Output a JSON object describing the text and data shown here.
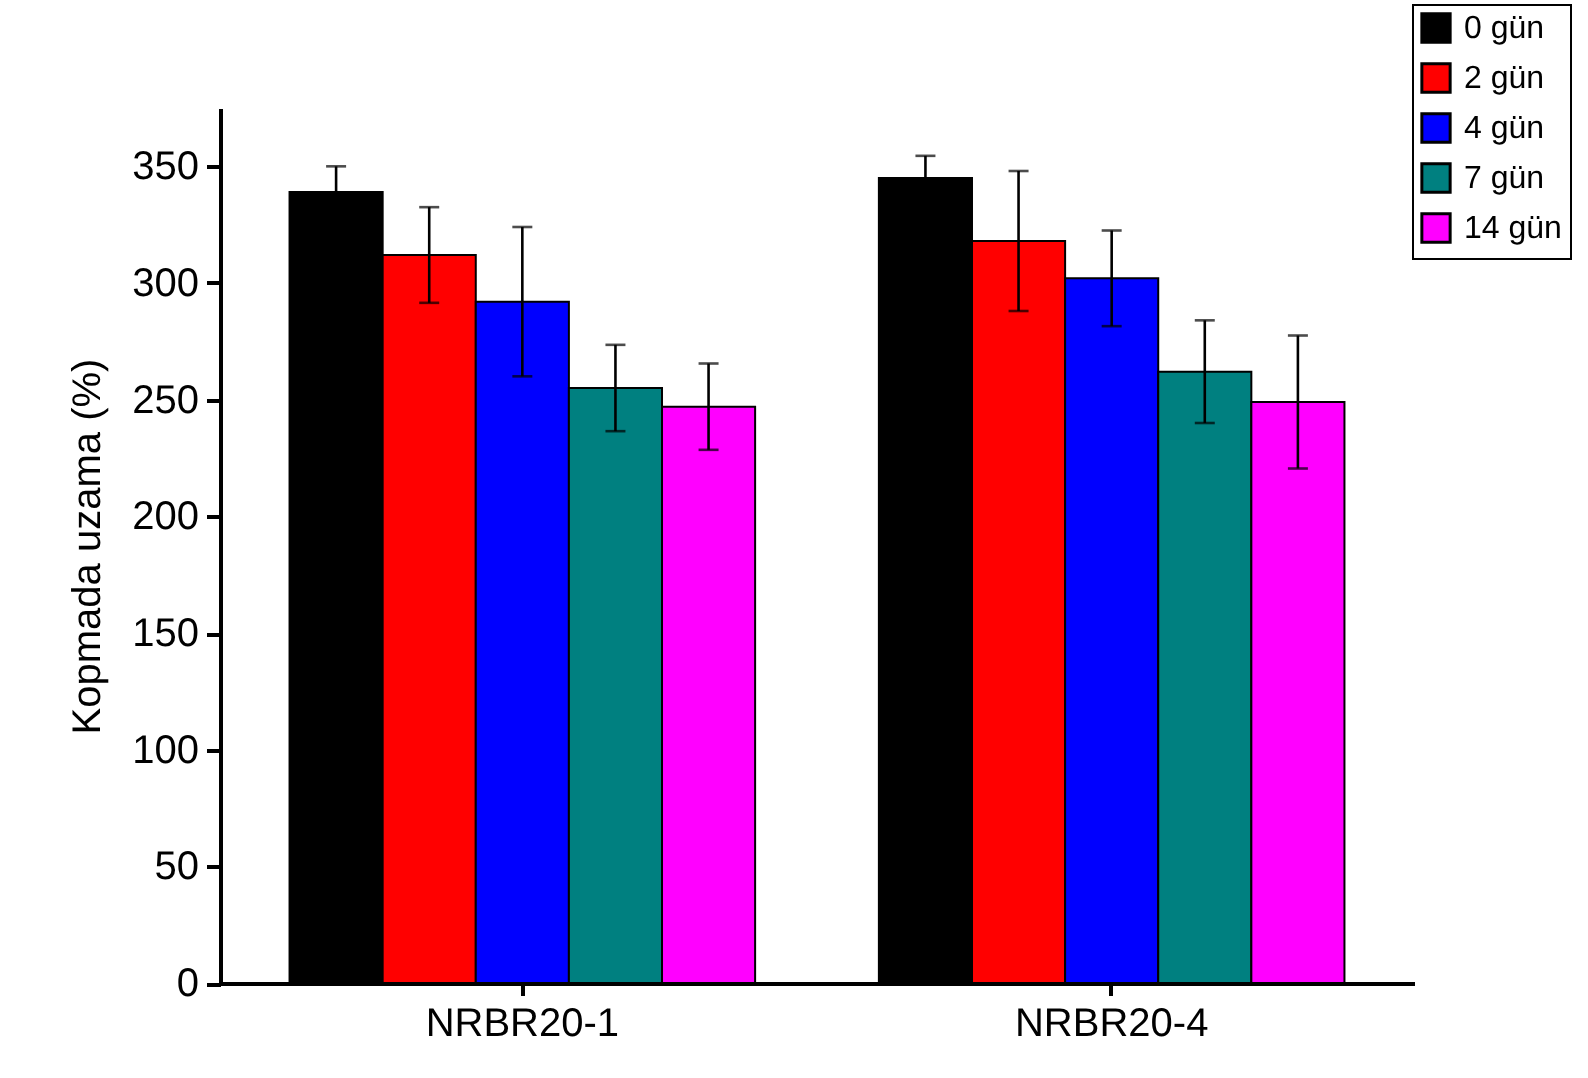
{
  "chart_data": {
    "type": "bar",
    "ylabel": "Kopmada uzama (%)",
    "categories": [
      "NRBR20-1",
      "NRBR20-4"
    ],
    "series": [
      {
        "name": "0 gün",
        "color": "#000000",
        "values": [
          339,
          345
        ],
        "errors": [
          11,
          9.5
        ]
      },
      {
        "name": "2 gün",
        "color": "#ff0000",
        "values": [
          312,
          318
        ],
        "errors": [
          20.5,
          30
        ]
      },
      {
        "name": "4 gün",
        "color": "#0000ff",
        "values": [
          292,
          302
        ],
        "errors": [
          32,
          20.5
        ]
      },
      {
        "name": "7 gün",
        "color": "#008080",
        "values": [
          255,
          262
        ],
        "errors": [
          18.5,
          22
        ]
      },
      {
        "name": "14 gün",
        "color": "#ff00ff",
        "values": [
          247,
          249
        ],
        "errors": [
          18.5,
          28.5
        ]
      }
    ],
    "ylim": [
      0,
      375
    ],
    "yticks": [
      0,
      50,
      100,
      150,
      200,
      250,
      300,
      350
    ],
    "grid": false,
    "legend": "top right"
  }
}
